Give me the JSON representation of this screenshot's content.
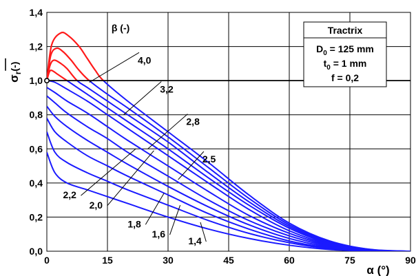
{
  "chart_data": {
    "type": "line",
    "title": "",
    "xlabel": "α (°)",
    "ylabel_main": "σ",
    "ylabel_sub": "r",
    "ylabel_unit": "(-)",
    "xlim": [
      0,
      90
    ],
    "ylim": [
      0,
      1.4
    ],
    "x_ticks": [
      0,
      15,
      30,
      45,
      60,
      75,
      90
    ],
    "x_tick_labels": [
      "0",
      "15",
      "30",
      "45",
      "60",
      "75",
      "90"
    ],
    "y_ticks": [
      0,
      0.2,
      0.4,
      0.6,
      0.8,
      1.0,
      1.2,
      1.4
    ],
    "y_tick_labels": [
      "0,0",
      "0,2",
      "0,4",
      "0,6",
      "0,8",
      "1,0",
      "1,2",
      "1,4"
    ],
    "grid": true,
    "reference_line": {
      "y": 1.0,
      "color": "#000000"
    },
    "marker_point": {
      "x": 0,
      "y": 1.0
    },
    "colors": {
      "below_reference": "#1a1aff",
      "above_reference": "#ff1a1a",
      "grid": "#000000"
    },
    "legend_title": "β (-)",
    "info_box": {
      "title": "Tractrix",
      "lines": [
        {
          "main": "D",
          "sub": "0",
          "rest": " = 125 mm"
        },
        {
          "main": "t",
          "sub": "0",
          "rest": " = 1 mm"
        },
        {
          "main": "f = 0,2",
          "sub": "",
          "rest": ""
        }
      ]
    },
    "series": [
      {
        "start": 0.58,
        "end": 84,
        "peak": null,
        "shape": "tail",
        "points": [
          [
            0,
            0.58
          ],
          [
            2,
            0.46
          ],
          [
            5,
            0.4
          ],
          [
            10,
            0.36
          ],
          [
            15,
            0.32
          ],
          [
            20,
            0.28
          ],
          [
            30,
            0.2
          ],
          [
            40,
            0.13
          ],
          [
            50,
            0.075
          ],
          [
            60,
            0.035
          ],
          [
            70,
            0.01
          ],
          [
            80,
            0.001
          ],
          [
            84,
            0
          ]
        ]
      },
      {
        "start": 0.7,
        "end": 85,
        "peak": null,
        "shape": "tail",
        "points": [
          [
            0,
            0.7
          ],
          [
            2,
            0.58
          ],
          [
            5,
            0.52
          ],
          [
            10,
            0.46
          ],
          [
            15,
            0.41
          ],
          [
            20,
            0.36
          ],
          [
            30,
            0.27
          ],
          [
            40,
            0.18
          ],
          [
            50,
            0.105
          ],
          [
            60,
            0.05
          ],
          [
            70,
            0.015
          ],
          [
            80,
            0.002
          ],
          [
            85,
            0
          ]
        ]
      },
      {
        "start": 0.78,
        "end": 86,
        "peak": null,
        "shape": "tail",
        "points": [
          [
            0,
            0.78
          ],
          [
            2,
            0.7
          ],
          [
            5,
            0.64
          ],
          [
            10,
            0.56
          ],
          [
            15,
            0.5
          ],
          [
            20,
            0.44
          ],
          [
            30,
            0.33
          ],
          [
            40,
            0.22
          ],
          [
            50,
            0.13
          ],
          [
            60,
            0.06
          ],
          [
            70,
            0.02
          ],
          [
            80,
            0.003
          ],
          [
            86,
            0
          ]
        ]
      },
      {
        "start": 0.85,
        "end": 87,
        "peak": null,
        "shape": "tail",
        "points": [
          [
            0,
            0.85
          ],
          [
            2,
            0.79
          ],
          [
            5,
            0.73
          ],
          [
            10,
            0.65
          ],
          [
            15,
            0.58
          ],
          [
            20,
            0.51
          ],
          [
            30,
            0.38
          ],
          [
            40,
            0.26
          ],
          [
            50,
            0.155
          ],
          [
            60,
            0.075
          ],
          [
            70,
            0.025
          ],
          [
            80,
            0.004
          ],
          [
            87,
            0
          ]
        ]
      },
      {
        "start": 0.91,
        "end": 87,
        "peak": null,
        "shape": "tail",
        "points": [
          [
            0,
            0.91
          ],
          [
            2,
            0.87
          ],
          [
            5,
            0.81
          ],
          [
            10,
            0.73
          ],
          [
            15,
            0.66
          ],
          [
            20,
            0.58
          ],
          [
            30,
            0.44
          ],
          [
            40,
            0.3
          ],
          [
            50,
            0.18
          ],
          [
            60,
            0.09
          ],
          [
            70,
            0.03
          ],
          [
            80,
            0.005
          ],
          [
            87,
            0
          ]
        ]
      },
      {
        "start": 0.96,
        "end": 88,
        "peak": null,
        "shape": "tail",
        "points": [
          [
            0,
            0.96
          ],
          [
            2,
            0.93
          ],
          [
            5,
            0.88
          ],
          [
            10,
            0.81
          ],
          [
            15,
            0.73
          ],
          [
            20,
            0.65
          ],
          [
            30,
            0.5
          ],
          [
            40,
            0.35
          ],
          [
            50,
            0.21
          ],
          [
            60,
            0.105
          ],
          [
            70,
            0.035
          ],
          [
            80,
            0.006
          ],
          [
            88,
            0
          ]
        ]
      },
      {
        "start": 1.0,
        "end": 88,
        "peak": null,
        "shape": "tail",
        "points": [
          [
            0,
            1.0
          ],
          [
            2,
            0.99
          ],
          [
            5,
            0.95
          ],
          [
            10,
            0.88
          ],
          [
            15,
            0.8
          ],
          [
            20,
            0.72
          ],
          [
            30,
            0.56
          ],
          [
            40,
            0.4
          ],
          [
            50,
            0.245
          ],
          [
            60,
            0.12
          ],
          [
            70,
            0.04
          ],
          [
            80,
            0.007
          ],
          [
            88,
            0
          ]
        ]
      },
      {
        "start": 1.0,
        "end": 89,
        "peak": [
          1.2,
          1.06
        ],
        "shape": "hump",
        "points": [
          [
            0,
            1.0
          ],
          [
            0.6,
            1.05
          ],
          [
            1.2,
            1.06
          ],
          [
            2.5,
            1.04
          ],
          [
            5,
            1.0
          ],
          [
            10,
            0.92
          ],
          [
            15,
            0.84
          ],
          [
            20,
            0.76
          ],
          [
            30,
            0.6
          ],
          [
            40,
            0.43
          ],
          [
            50,
            0.27
          ],
          [
            60,
            0.135
          ],
          [
            70,
            0.045
          ],
          [
            80,
            0.008
          ],
          [
            89,
            0
          ]
        ]
      },
      {
        "start": 1.0,
        "end": 89,
        "peak": [
          1.8,
          1.12
        ],
        "shape": "hump",
        "points": [
          [
            0,
            1.0
          ],
          [
            0.8,
            1.09
          ],
          [
            1.8,
            1.12
          ],
          [
            3.5,
            1.1
          ],
          [
            5,
            1.07
          ],
          [
            7.5,
            1.0
          ],
          [
            10,
            0.96
          ],
          [
            15,
            0.88
          ],
          [
            20,
            0.8
          ],
          [
            30,
            0.64
          ],
          [
            40,
            0.46
          ],
          [
            50,
            0.29
          ],
          [
            60,
            0.145
          ],
          [
            70,
            0.05
          ],
          [
            80,
            0.009
          ],
          [
            89,
            0
          ]
        ]
      },
      {
        "start": 1.0,
        "end": 89,
        "peak": [
          2.4,
          1.19
        ],
        "shape": "hump",
        "points": [
          [
            0,
            1.0
          ],
          [
            1,
            1.15
          ],
          [
            2.4,
            1.19
          ],
          [
            4,
            1.17
          ],
          [
            6,
            1.12
          ],
          [
            8,
            1.06
          ],
          [
            10.5,
            1.0
          ],
          [
            15,
            0.92
          ],
          [
            20,
            0.84
          ],
          [
            30,
            0.67
          ],
          [
            40,
            0.49
          ],
          [
            50,
            0.31
          ],
          [
            60,
            0.155
          ],
          [
            70,
            0.055
          ],
          [
            80,
            0.01
          ],
          [
            89,
            0
          ]
        ]
      },
      {
        "start": 1.0,
        "end": 90,
        "peak": [
          3.5,
          1.28
        ],
        "shape": "hump",
        "points": [
          [
            0,
            1.0
          ],
          [
            1.2,
            1.21
          ],
          [
            3.5,
            1.28
          ],
          [
            5.5,
            1.26
          ],
          [
            8,
            1.2
          ],
          [
            10,
            1.13
          ],
          [
            12,
            1.06
          ],
          [
            14,
            1.0
          ],
          [
            20,
            0.88
          ],
          [
            30,
            0.7
          ],
          [
            40,
            0.52
          ],
          [
            50,
            0.33
          ],
          [
            60,
            0.165
          ],
          [
            70,
            0.06
          ],
          [
            80,
            0.011
          ],
          [
            90,
            0
          ]
        ]
      }
    ],
    "annotations": [
      {
        "label": "4,0",
        "anchor": [
          10.5,
          0.99
        ],
        "text_at": [
          22.5,
          1.1
        ]
      },
      {
        "label": "3,2",
        "anchor": [
          19,
          0.8
        ],
        "text_at": [
          28,
          0.93
        ]
      },
      {
        "label": "2,8",
        "anchor": [
          25,
          0.6
        ],
        "text_at": [
          34.5,
          0.74
        ]
      },
      {
        "label": "2,5",
        "anchor": [
          32.5,
          0.42
        ],
        "text_at": [
          38.5,
          0.52
        ]
      },
      {
        "label": "2,2",
        "anchor": [
          22,
          0.6
        ],
        "text_at": [
          4,
          0.31
        ]
      },
      {
        "label": "2,0",
        "anchor": [
          26.5,
          0.59
        ],
        "text_at": [
          10.5,
          0.25
        ]
      },
      {
        "label": "1,8",
        "anchor": [
          29,
          0.34
        ],
        "text_at": [
          20,
          0.14
        ]
      },
      {
        "label": "1,6",
        "anchor": [
          33,
          0.27
        ],
        "text_at": [
          26,
          0.08
        ]
      },
      {
        "label": "1,4",
        "anchor": [
          38,
          0.17
        ],
        "text_at": [
          35,
          0.04
        ]
      }
    ]
  }
}
